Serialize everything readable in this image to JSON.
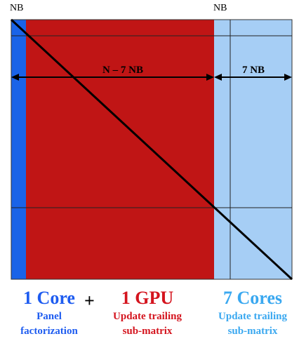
{
  "labels": {
    "nb_left": "NB",
    "nb_right": "NB",
    "span_gpu": "N – 7 NB",
    "span_cores": "7 NB"
  },
  "groups": [
    {
      "title": "1 Core",
      "subtitle_line1": "Panel",
      "subtitle_line2": "factorization",
      "color": "#1e5cf0"
    },
    {
      "title": "1 GPU",
      "subtitle_line1": "Update trailing",
      "subtitle_line2": "sub-matrix",
      "color": "#d4141e"
    },
    {
      "title": "7 Cores",
      "subtitle_line1": "Update trailing",
      "subtitle_line2": "sub-matrix",
      "color": "#3aa8f0"
    }
  ],
  "plus_sign": "+",
  "colors": {
    "core_region": "#1a63e8",
    "gpu_region": "#c01515",
    "cores_region": "#a6cef5"
  }
}
